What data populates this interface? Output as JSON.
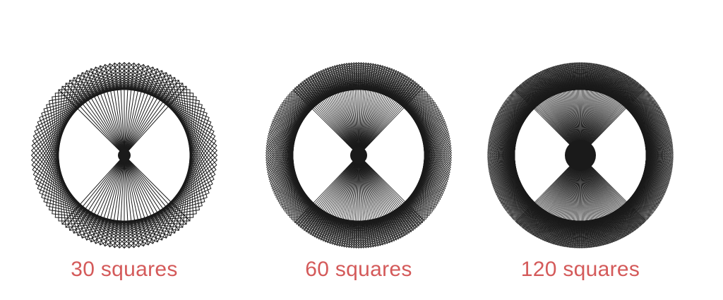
{
  "figures": [
    {
      "caption": "30 squares",
      "squares": 30
    },
    {
      "caption": "60 squares",
      "squares": 60
    },
    {
      "caption": "120 squares",
      "squares": 120
    }
  ],
  "colors": {
    "caption": "#d45a5a",
    "stroke": "#1a1a1a",
    "background": "#ffffff"
  }
}
